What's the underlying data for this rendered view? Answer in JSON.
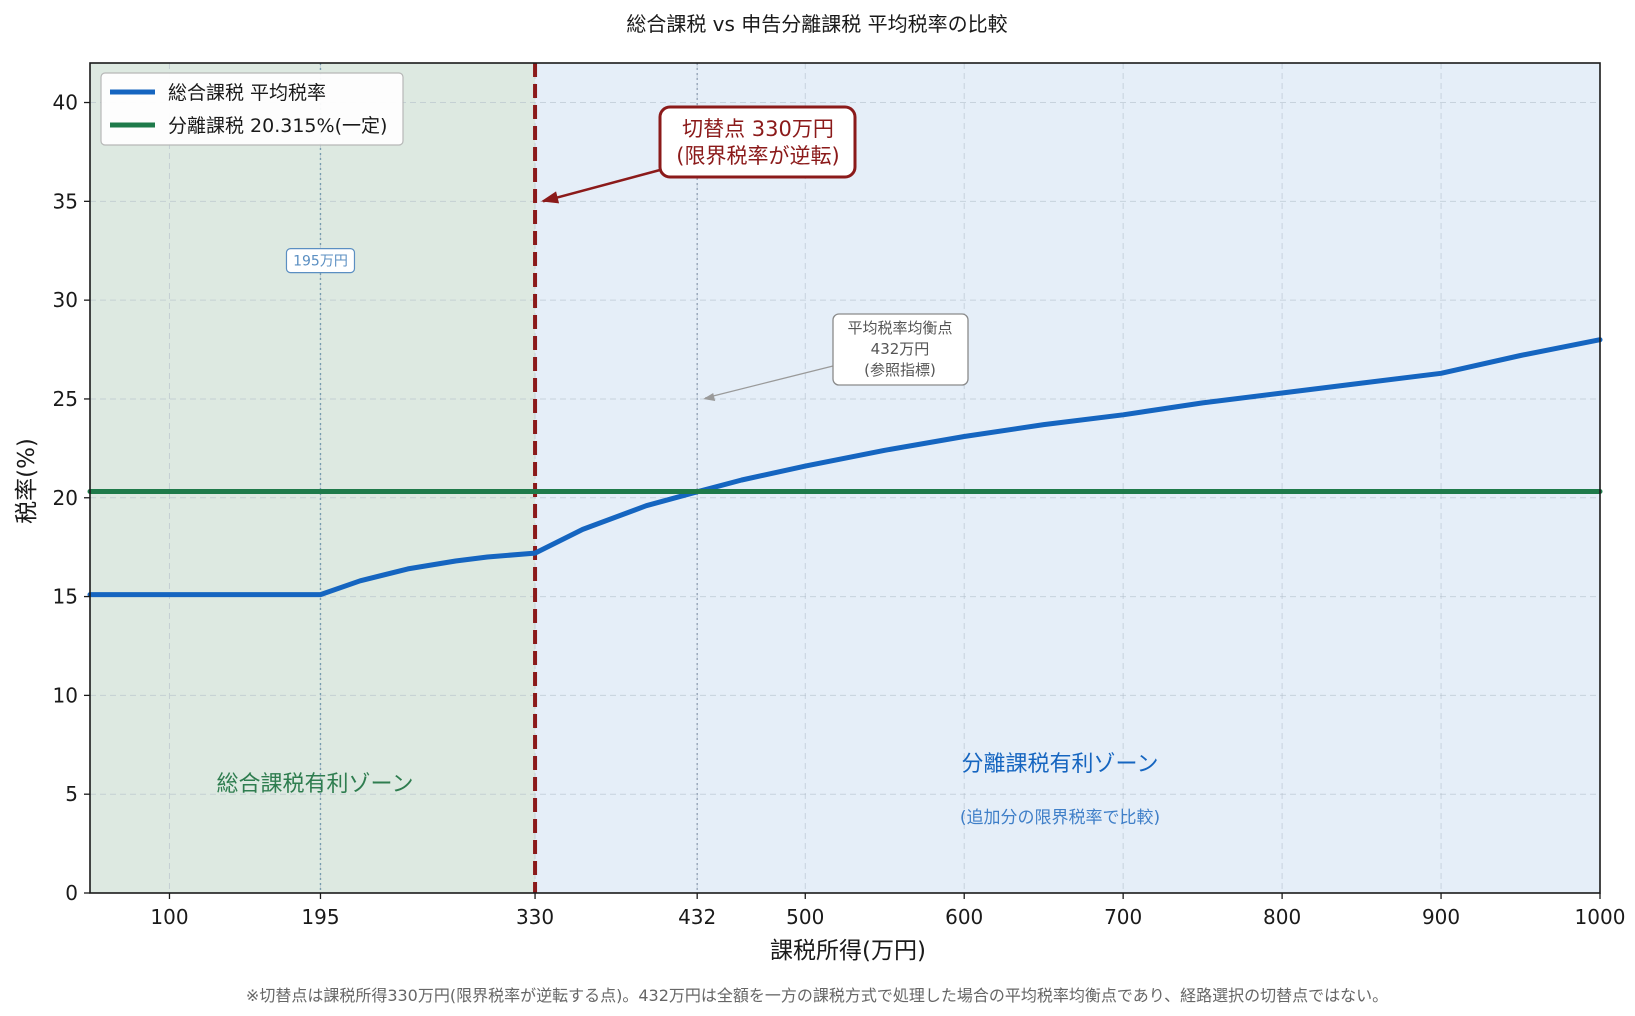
{
  "chart_data": {
    "type": "line",
    "title": "総合課税 vs 申告分離課税 平均税率の比較",
    "xlabel": "課税所得(万円)",
    "ylabel": "税率(%)",
    "xlim": [
      50,
      1000
    ],
    "ylim": [
      0,
      42
    ],
    "x_ticks": [
      100,
      195,
      330,
      432,
      500,
      600,
      700,
      800,
      900,
      1000
    ],
    "y_ticks": [
      0,
      5,
      10,
      15,
      20,
      25,
      30,
      35,
      40
    ],
    "grid": true,
    "legend_position": "top-left",
    "series": [
      {
        "name": "総合課税 平均税率",
        "color": "#1565c0",
        "x": [
          50,
          100,
          150,
          195,
          220,
          250,
          280,
          300,
          330,
          360,
          400,
          432,
          460,
          500,
          550,
          600,
          650,
          700,
          750,
          800,
          850,
          900,
          950,
          1000
        ],
        "y": [
          15.1,
          15.1,
          15.1,
          15.1,
          15.8,
          16.4,
          16.8,
          17.0,
          17.2,
          18.4,
          19.6,
          20.3,
          20.9,
          21.6,
          22.4,
          23.1,
          23.7,
          24.2,
          24.8,
          25.3,
          25.8,
          26.3,
          27.2,
          28.0
        ]
      },
      {
        "name": "分離課税 20.315%(一定)",
        "color": "#1e7a4a",
        "x": [
          50,
          1000
        ],
        "y": [
          20.315,
          20.315
        ]
      }
    ],
    "zones": [
      {
        "label": "総合課税有利ゾーン",
        "from": 50,
        "to": 330,
        "color": "#dde9e1"
      },
      {
        "label": "分離課税有利ゾーン",
        "from": 330,
        "to": 1000,
        "color": "#e5eef8",
        "sublabel": "(追加分の限界税率で比較)"
      }
    ],
    "reference_lines": [
      {
        "x": 195,
        "style": "dotted",
        "color": "#6a93a8"
      },
      {
        "x": 330,
        "style": "dashed",
        "color": "#8b1a1a"
      },
      {
        "x": 432,
        "style": "dotted",
        "color": "#8c9bb0"
      }
    ],
    "annotations": [
      {
        "id": "switch",
        "text_line1": "切替点 330万円",
        "text_line2": "(限界税率が逆転)",
        "color": "#8b1a1a",
        "point_x": 330,
        "point_y": 35
      },
      {
        "id": "breakeven",
        "text_line1": "平均税率均衡点",
        "text_line2": "432万円",
        "text_line3": "(参照指標)",
        "color": "#555555",
        "point_x": 432,
        "point_y": 25
      },
      {
        "id": "t195",
        "text": "195万円",
        "color": "#5b8fc2",
        "at_x": 195,
        "at_y": 32
      }
    ],
    "footnote": "※切替点は課税所得330万円(限界税率が逆転する点)。432万円は全額を一方の課税方式で処理した場合の平均税率均衡点であり、経路選択の切替点ではない。"
  }
}
